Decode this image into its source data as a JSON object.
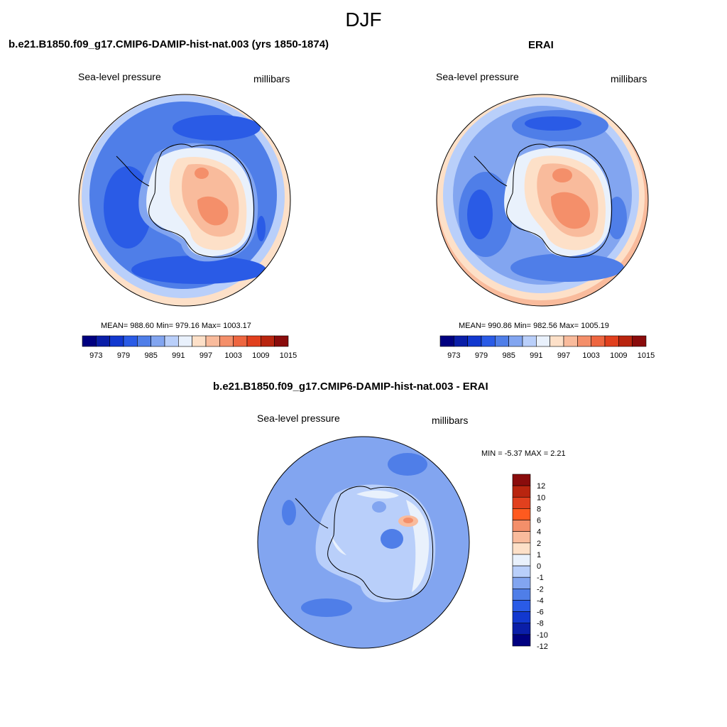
{
  "season": "DJF",
  "panels": [
    {
      "title": "b.e21.B1850.f09_g17.CMIP6-DAMIP-hist-nat.003 (yrs 1850-1874)",
      "left_label": "Sea-level pressure",
      "right_label": "millibars",
      "stats": "MEAN= 988.60  Min= 979.16  Max= 1003.17"
    },
    {
      "title": "ERAI",
      "left_label": "Sea-level pressure",
      "right_label": "millibars",
      "stats": "MEAN= 990.86  Min= 982.56  Max= 1005.19"
    },
    {
      "title": "b.e21.B1850.f09_g17.CMIP6-DAMIP-hist-nat.003 - ERAI",
      "left_label": "Sea-level pressure",
      "right_label": "millibars",
      "stats": "MIN =  -5.37 MAX =   2.21"
    }
  ],
  "colorbar_abs": {
    "ticks": [
      "973",
      "979",
      "985",
      "991",
      "997",
      "1003",
      "1009",
      "1015"
    ],
    "colors": [
      "#000080",
      "#0a1ea8",
      "#1238cf",
      "#2a5be6",
      "#4f7ee8",
      "#82a5f0",
      "#b9cffa",
      "#e9f1fc",
      "#fde0c8",
      "#f9bb9c",
      "#f48f6a",
      "#ee6640",
      "#e1401e",
      "#b9250f",
      "#8a0c0c"
    ]
  },
  "colorbar_diff": {
    "ticks": [
      "12",
      "10",
      "8",
      "6",
      "4",
      "2",
      "1",
      "0",
      "-1",
      "-2",
      "-4",
      "-6",
      "-8",
      "-10",
      "-12"
    ],
    "colors": [
      "#8a0c0c",
      "#b9250f",
      "#e1401e",
      "#ff5a1f",
      "#f48f6a",
      "#f9bb9c",
      "#fde0c8",
      "#e9f1fc",
      "#b9cffa",
      "#82a5f0",
      "#4f7ee8",
      "#2a5be6",
      "#1238cf",
      "#0a1ea8",
      "#000080"
    ]
  }
}
